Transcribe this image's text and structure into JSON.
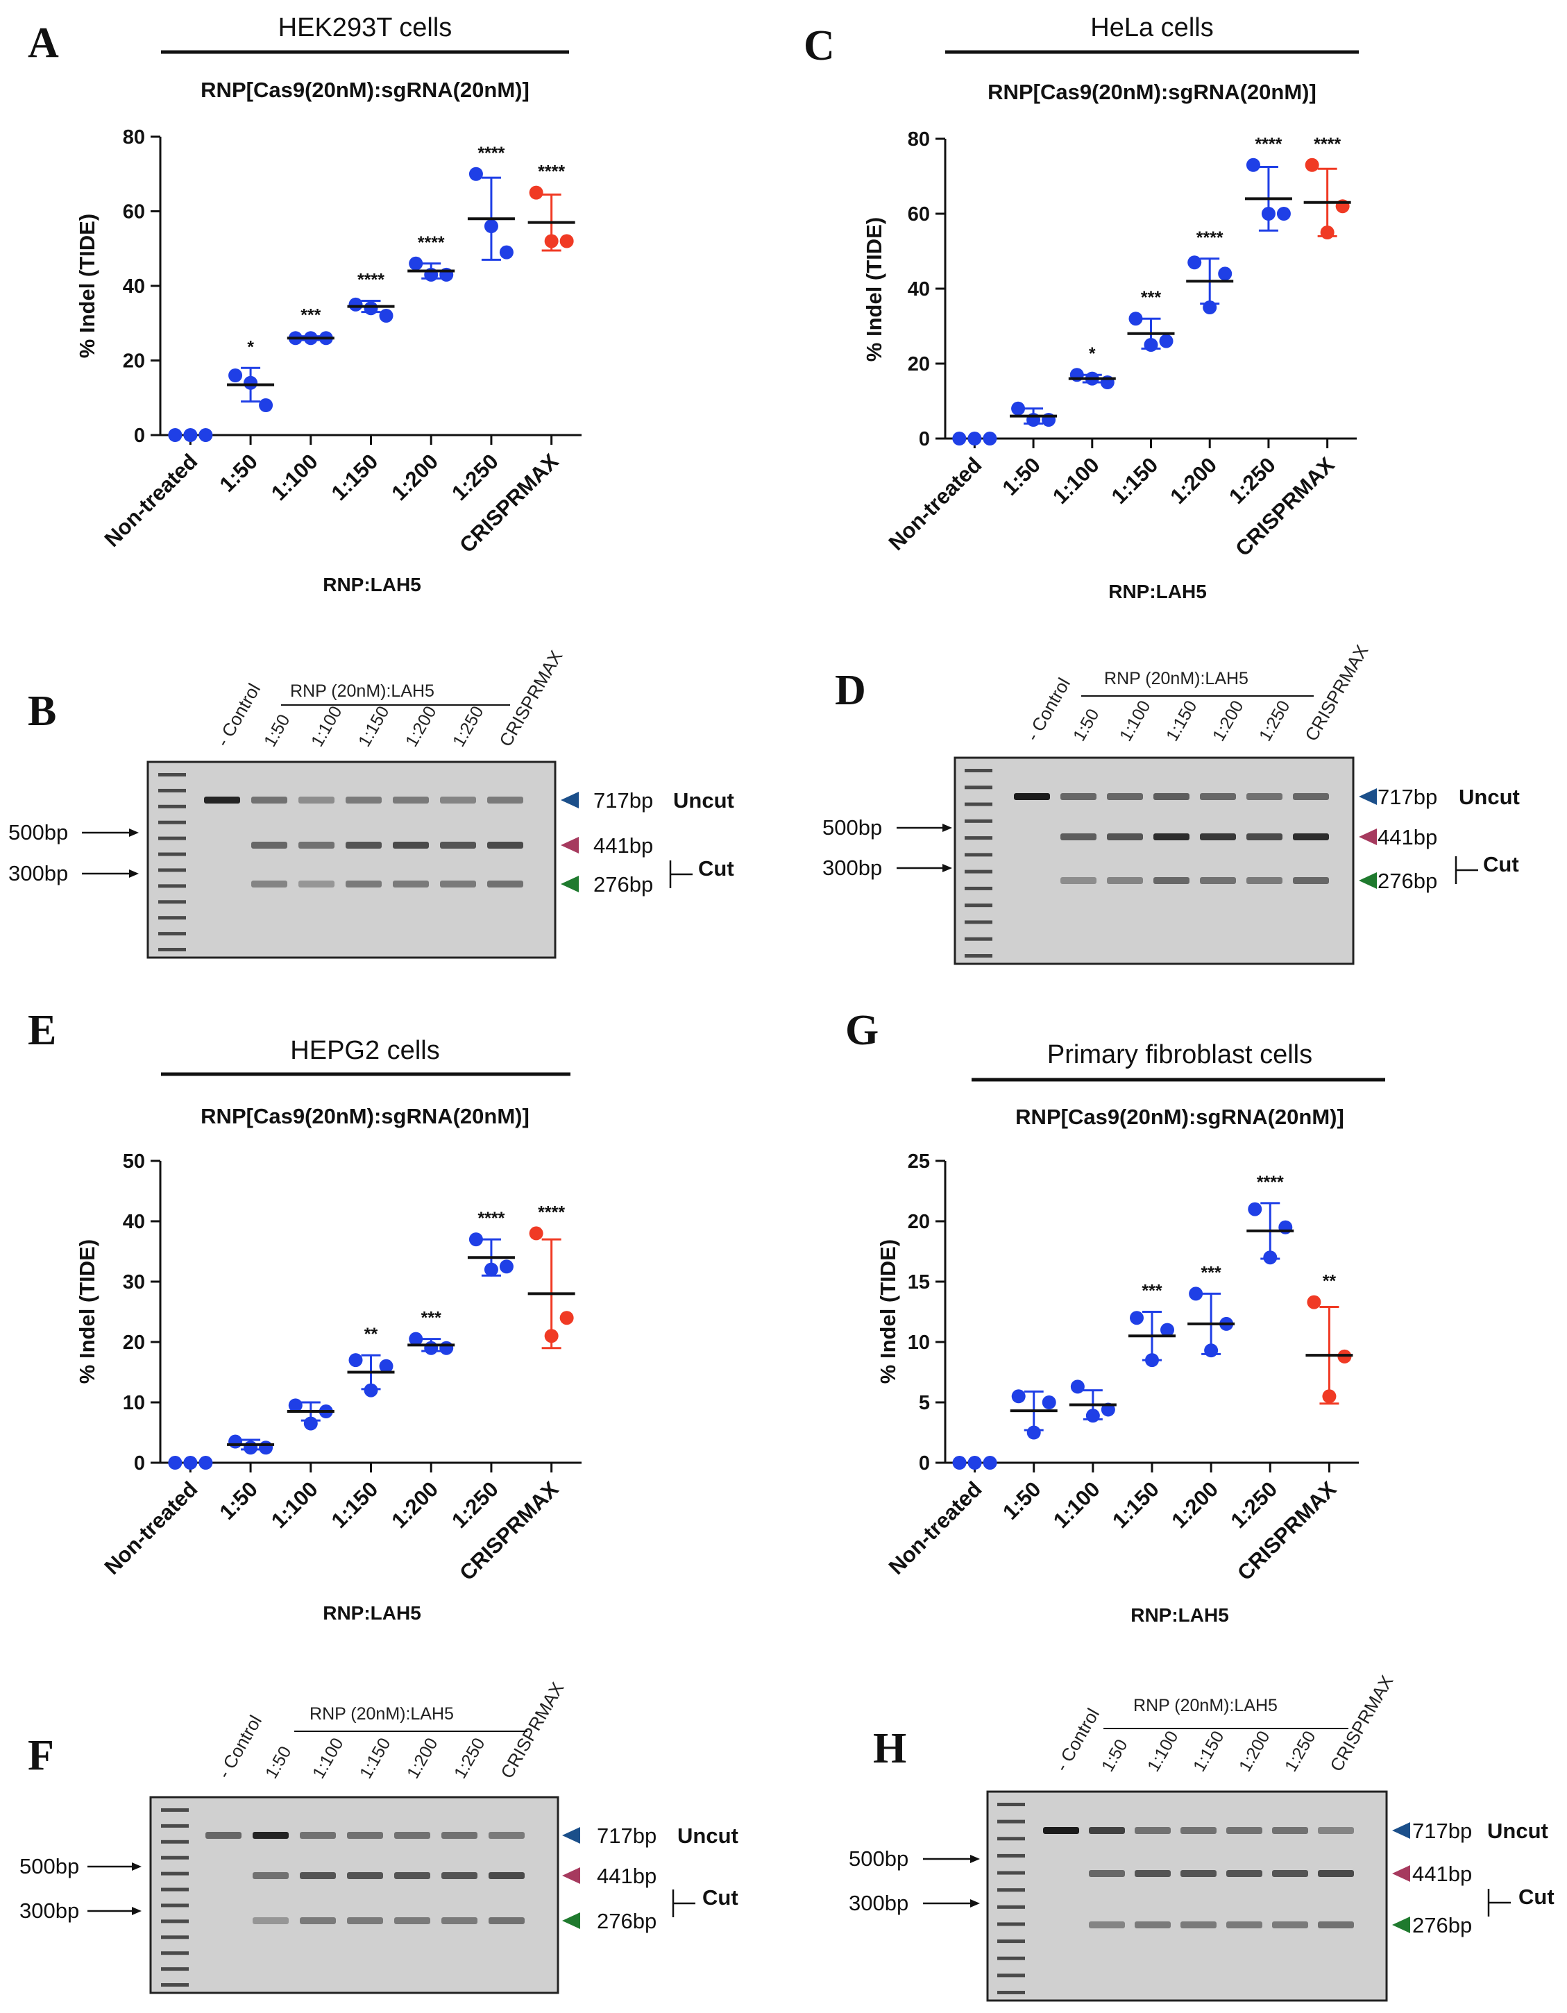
{
  "chart_data": [
    {
      "panel": "A",
      "type": "scatter",
      "title": "HEK293T cells",
      "subtitle": "RNP[Cas9(20nM):sgRNA(20nM)]",
      "xlabel": "RNP:LAH5",
      "ylabel": "% Indel (TIDE)",
      "ylim": [
        0,
        80
      ],
      "yticks": [
        0,
        20,
        40,
        60,
        80
      ],
      "categories": [
        "Non-treated",
        "1:50",
        "1:100",
        "1:150",
        "1:200",
        "1:250",
        "CRISPRMAX"
      ],
      "points": [
        [
          0,
          0,
          0
        ],
        [
          16,
          14,
          8
        ],
        [
          26,
          26,
          26
        ],
        [
          35,
          34,
          32
        ],
        [
          46,
          43,
          43
        ],
        [
          70,
          56,
          49
        ],
        [
          65,
          52,
          52
        ]
      ],
      "mean": [
        0,
        13.5,
        26,
        34.5,
        44,
        58,
        57
      ],
      "sd": [
        0,
        4.5,
        0.5,
        1.5,
        2,
        11,
        7.5
      ],
      "significance": [
        "",
        "*",
        "***",
        "****",
        "****",
        "****",
        "****"
      ],
      "colors": [
        "#1f3fe6",
        "#1f3fe6",
        "#1f3fe6",
        "#1f3fe6",
        "#1f3fe6",
        "#1f3fe6",
        "#f03a24"
      ]
    },
    {
      "panel": "C",
      "type": "scatter",
      "title": "HeLa cells",
      "subtitle": "RNP[Cas9(20nM):sgRNA(20nM)]",
      "xlabel": "RNP:LAH5",
      "ylabel": "% Indel (TIDE)",
      "ylim": [
        0,
        80
      ],
      "yticks": [
        0,
        20,
        40,
        60,
        80
      ],
      "categories": [
        "Non-treated",
        "1:50",
        "1:100",
        "1:150",
        "1:200",
        "1:250",
        "CRISPRMAX"
      ],
      "points": [
        [
          0,
          0,
          0
        ],
        [
          8,
          5,
          5
        ],
        [
          17,
          16,
          15
        ],
        [
          32,
          25,
          26
        ],
        [
          47,
          35,
          44
        ],
        [
          73,
          60,
          60
        ],
        [
          73,
          55,
          62
        ]
      ],
      "mean": [
        0,
        6,
        16,
        28,
        42,
        64,
        63
      ],
      "sd": [
        0,
        2,
        1,
        4,
        6,
        8.5,
        9
      ],
      "significance": [
        "",
        "",
        "*",
        "***",
        "****",
        "****",
        "****"
      ],
      "colors": [
        "#1f3fe6",
        "#1f3fe6",
        "#1f3fe6",
        "#1f3fe6",
        "#1f3fe6",
        "#1f3fe6",
        "#f03a24"
      ]
    },
    {
      "panel": "E",
      "type": "scatter",
      "title": "HEPG2 cells",
      "subtitle": "RNP[Cas9(20nM):sgRNA(20nM)]",
      "xlabel": "RNP:LAH5",
      "ylabel": "% Indel (TIDE)",
      "ylim": [
        0,
        50
      ],
      "yticks": [
        0,
        10,
        20,
        30,
        40,
        50
      ],
      "categories": [
        "Non-treated",
        "1:50",
        "1:100",
        "1:150",
        "1:200",
        "1:250",
        "CRISPRMAX"
      ],
      "points": [
        [
          0,
          0,
          0
        ],
        [
          3.5,
          2.5,
          2.5
        ],
        [
          9.5,
          6.5,
          8.5
        ],
        [
          17,
          12,
          16
        ],
        [
          20.5,
          19,
          19
        ],
        [
          37,
          32,
          32.5
        ],
        [
          38,
          21,
          24
        ]
      ],
      "mean": [
        0,
        3,
        8.5,
        15,
        19.5,
        34,
        28
      ],
      "sd": [
        0,
        0.8,
        1.5,
        2.8,
        1,
        3,
        9
      ],
      "significance": [
        "",
        "",
        "",
        "**",
        "***",
        "****",
        "****"
      ],
      "colors": [
        "#1f3fe6",
        "#1f3fe6",
        "#1f3fe6",
        "#1f3fe6",
        "#1f3fe6",
        "#1f3fe6",
        "#f03a24"
      ]
    },
    {
      "panel": "G",
      "type": "scatter",
      "title": "Primary fibroblast cells",
      "subtitle": "RNP[Cas9(20nM):sgRNA(20nM)]",
      "xlabel": "RNP:LAH5",
      "ylabel": "% Indel (TIDE)",
      "ylim": [
        0,
        25
      ],
      "yticks": [
        0,
        5,
        10,
        15,
        20,
        25
      ],
      "categories": [
        "Non-treated",
        "1:50",
        "1:100",
        "1:150",
        "1:200",
        "1:250",
        "CRISPRMAX"
      ],
      "points": [
        [
          0,
          0,
          0
        ],
        [
          5.5,
          2.5,
          5
        ],
        [
          6.3,
          3.9,
          4.4
        ],
        [
          12,
          8.5,
          11
        ],
        [
          14,
          9.3,
          11.5
        ],
        [
          21,
          17,
          19.5
        ],
        [
          13.3,
          5.5,
          8.8
        ]
      ],
      "mean": [
        0,
        4.3,
        4.8,
        10.5,
        11.5,
        19.2,
        8.9
      ],
      "sd": [
        0,
        1.6,
        1.2,
        2,
        2.5,
        2.3,
        4
      ],
      "significance": [
        "",
        "",
        "",
        "***",
        "***",
        "****",
        "**"
      ],
      "colors": [
        "#1f3fe6",
        "#1f3fe6",
        "#1f3fe6",
        "#1f3fe6",
        "#1f3fe6",
        "#1f3fe6",
        "#f03a24"
      ]
    }
  ],
  "panel_letters": [
    "A",
    "B",
    "C",
    "D",
    "E",
    "F",
    "G",
    "H"
  ],
  "gels": [
    {
      "panel": "B",
      "lanes": [
        "- Control",
        "1:50",
        "1:100",
        "1:150",
        "1:200",
        "1:250",
        "CRISPRMAX"
      ],
      "group_label": "RNP (20nM):LAH5",
      "ladder_markers": [
        "500bp",
        "300bp"
      ],
      "bands": [
        "717bp",
        "441bp",
        "276bp"
      ],
      "uncut_label": "Uncut",
      "cut_label": "Cut",
      "intensity": {
        "717": [
          0.9,
          0.5,
          0.35,
          0.45,
          0.45,
          0.4,
          0.45
        ],
        "441": [
          0,
          0.55,
          0.5,
          0.65,
          0.7,
          0.65,
          0.7
        ],
        "276": [
          0,
          0.4,
          0.3,
          0.45,
          0.45,
          0.45,
          0.5
        ]
      }
    },
    {
      "panel": "D",
      "lanes": [
        "- Control",
        "1:50",
        "1:100",
        "1:150",
        "1:200",
        "1:250",
        "CRISPRMAX"
      ],
      "group_label": "RNP (20nM):LAH5",
      "ladder_markers": [
        "500bp",
        "300bp"
      ],
      "bands": [
        "717bp",
        "441bp",
        "276bp"
      ],
      "uncut_label": "Uncut",
      "cut_label": "Cut",
      "intensity": {
        "717": [
          0.95,
          0.55,
          0.55,
          0.6,
          0.55,
          0.5,
          0.55
        ],
        "441": [
          0,
          0.6,
          0.65,
          0.85,
          0.8,
          0.7,
          0.85
        ],
        "276": [
          0,
          0.35,
          0.4,
          0.55,
          0.5,
          0.45,
          0.55
        ]
      }
    },
    {
      "panel": "F",
      "lanes": [
        "- Control",
        "1:50",
        "1:100",
        "1:150",
        "1:200",
        "1:250",
        "CRISPRMAX"
      ],
      "group_label": "RNP (20nM):LAH5",
      "ladder_markers": [
        "500bp",
        "300bp"
      ],
      "bands": [
        "717bp",
        "441bp",
        "276bp"
      ],
      "uncut_label": "Uncut",
      "cut_label": "Cut",
      "intensity": {
        "717": [
          0.55,
          0.9,
          0.5,
          0.5,
          0.5,
          0.5,
          0.45
        ],
        "441": [
          0,
          0.5,
          0.65,
          0.65,
          0.65,
          0.65,
          0.7
        ],
        "276": [
          0,
          0.3,
          0.45,
          0.45,
          0.45,
          0.45,
          0.5
        ]
      }
    },
    {
      "panel": "H",
      "lanes": [
        "- Control",
        "1:50",
        "1:100",
        "1:150",
        "1:200",
        "1:250",
        "CRISPRMAX"
      ],
      "group_label": "RNP (20nM):LAH5",
      "ladder_markers": [
        "500bp",
        "300bp"
      ],
      "bands": [
        "717bp",
        "441bp",
        "276bp"
      ],
      "uncut_label": "Uncut",
      "cut_label": "Cut",
      "intensity": {
        "717": [
          0.95,
          0.75,
          0.5,
          0.5,
          0.5,
          0.5,
          0.4
        ],
        "441": [
          0,
          0.55,
          0.65,
          0.65,
          0.65,
          0.65,
          0.7
        ],
        "276": [
          0,
          0.4,
          0.45,
          0.45,
          0.45,
          0.45,
          0.5
        ]
      }
    }
  ],
  "colors": {
    "blue": "#1f3fe6",
    "red": "#f03a24",
    "uncut_arrow": "#1b4f8a",
    "cut441_arrow": "#a63a5e",
    "cut276_arrow": "#1f7a2e"
  }
}
